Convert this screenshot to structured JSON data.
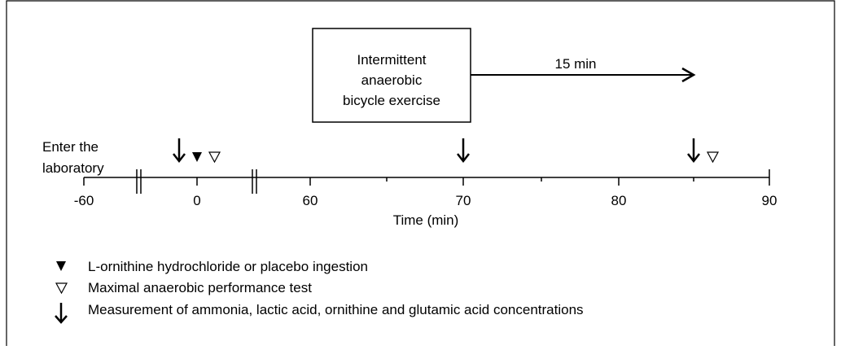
{
  "box": {
    "lines": [
      "Intermittent",
      "anaerobic",
      "bicycle exercise"
    ]
  },
  "duration_label": "15 min",
  "start_label": [
    "Enter the",
    "laboratory"
  ],
  "axis": {
    "ticks": [
      "-60",
      "0",
      "60",
      "70",
      "80",
      "90"
    ],
    "label": "Time (min)"
  },
  "legend": [
    "L-ornithine hydrochloride or placebo ingestion",
    "Maximal anaerobic performance test",
    "Measurement of ammonia, lactic acid, ornithine and glutamic acid concentrations"
  ]
}
